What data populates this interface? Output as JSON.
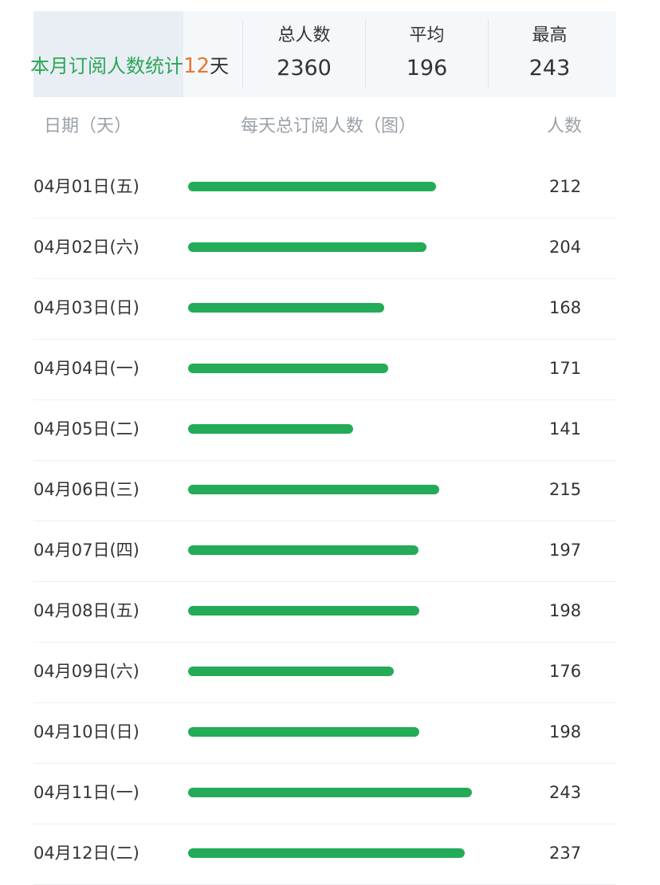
{
  "header": {
    "title": "本月订阅人数统计",
    "days": "12",
    "days_unit": "天",
    "stats": [
      {
        "label": "总人数",
        "value": "2360"
      },
      {
        "label": "平均",
        "value": "196"
      },
      {
        "label": "最高",
        "value": "243"
      }
    ]
  },
  "columns": {
    "date": "日期（天）",
    "bar": "每天总订阅人数（图）",
    "count": "人数"
  },
  "colors": {
    "accent": "#24ab57",
    "highlight": "#e8772e"
  },
  "chart_data": {
    "type": "bar",
    "orientation": "horizontal",
    "categories": [
      "04月01日(五)",
      "04月02日(六)",
      "04月03日(日)",
      "04月04日(一)",
      "04月05日(二)",
      "04月06日(三)",
      "04月07日(四)",
      "04月08日(五)",
      "04月09日(六)",
      "04月10日(日)",
      "04月11日(一)",
      "04月12日(二)"
    ],
    "values": [
      212,
      204,
      168,
      171,
      141,
      215,
      197,
      198,
      176,
      198,
      243,
      237
    ],
    "xlim": [
      0,
      243
    ],
    "grid": false,
    "legend": "none"
  }
}
